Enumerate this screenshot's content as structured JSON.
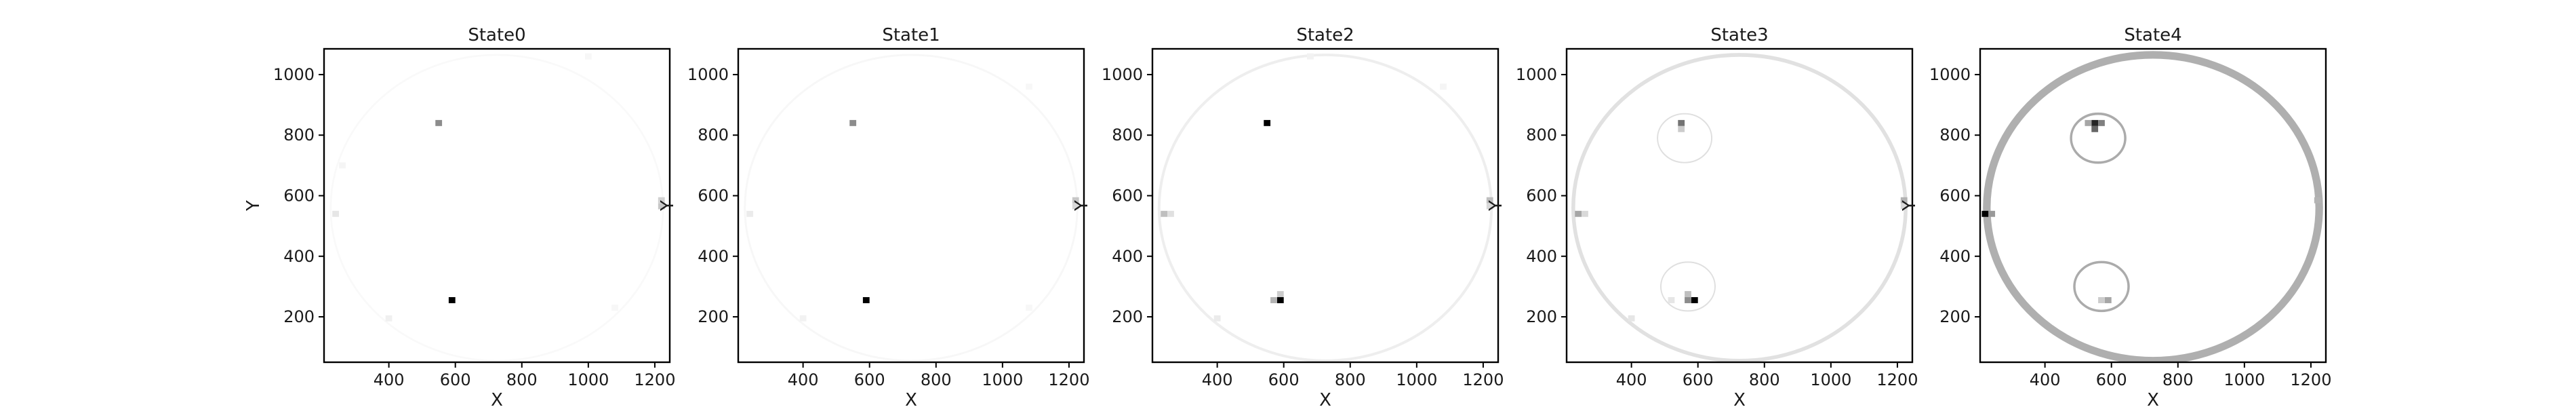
{
  "chart_data": [
    {
      "type": "heatmap",
      "title": "State0",
      "xlabel": "X",
      "ylabel": "Y",
      "xlim": [
        205,
        1245
      ],
      "ylim": [
        50,
        1085
      ],
      "xticks": [
        400,
        600,
        800,
        1000,
        1200
      ],
      "yticks": [
        200,
        400,
        600,
        800,
        1000
      ],
      "cmap": "Greys",
      "cells": [
        {
          "x": 590,
          "y": 255,
          "v": 1.0
        },
        {
          "x": 550,
          "y": 840,
          "v": 0.45
        },
        {
          "x": 1220,
          "y": 565,
          "v": 0.22
        },
        {
          "x": 1220,
          "y": 585,
          "v": 0.18
        },
        {
          "x": 240,
          "y": 540,
          "v": 0.1
        },
        {
          "x": 400,
          "y": 195,
          "v": 0.06
        },
        {
          "x": 260,
          "y": 700,
          "v": 0.04
        },
        {
          "x": 1080,
          "y": 230,
          "v": 0.03
        },
        {
          "x": 1000,
          "y": 1060,
          "v": 0.03
        }
      ]
    },
    {
      "type": "heatmap",
      "title": "State1",
      "xlabel": "X",
      "ylabel": "Y",
      "xlim": [
        205,
        1245
      ],
      "ylim": [
        50,
        1085
      ],
      "xticks": [
        400,
        600,
        800,
        1000,
        1200
      ],
      "yticks": [
        200,
        400,
        600,
        800,
        1000
      ],
      "cmap": "Greys",
      "cells": [
        {
          "x": 590,
          "y": 255,
          "v": 1.0
        },
        {
          "x": 550,
          "y": 840,
          "v": 0.45
        },
        {
          "x": 1220,
          "y": 585,
          "v": 0.22
        },
        {
          "x": 1220,
          "y": 565,
          "v": 0.15
        },
        {
          "x": 240,
          "y": 540,
          "v": 0.08
        },
        {
          "x": 400,
          "y": 195,
          "v": 0.05
        },
        {
          "x": 1080,
          "y": 230,
          "v": 0.03
        },
        {
          "x": 1080,
          "y": 960,
          "v": 0.03
        }
      ]
    },
    {
      "type": "heatmap",
      "title": "State2",
      "xlabel": "X",
      "ylabel": "Y",
      "xlim": [
        205,
        1245
      ],
      "ylim": [
        50,
        1085
      ],
      "xticks": [
        400,
        600,
        800,
        1000,
        1200
      ],
      "yticks": [
        200,
        400,
        600,
        800,
        1000
      ],
      "cmap": "Greys",
      "cells": [
        {
          "x": 550,
          "y": 840,
          "v": 1.0
        },
        {
          "x": 590,
          "y": 255,
          "v": 1.0
        },
        {
          "x": 570,
          "y": 255,
          "v": 0.3
        },
        {
          "x": 590,
          "y": 275,
          "v": 0.2
        },
        {
          "x": 1220,
          "y": 585,
          "v": 0.25
        },
        {
          "x": 1220,
          "y": 565,
          "v": 0.15
        },
        {
          "x": 240,
          "y": 540,
          "v": 0.25
        },
        {
          "x": 260,
          "y": 540,
          "v": 0.12
        },
        {
          "x": 400,
          "y": 195,
          "v": 0.08
        },
        {
          "x": 680,
          "y": 1060,
          "v": 0.05
        },
        {
          "x": 1080,
          "y": 960,
          "v": 0.04
        }
      ]
    },
    {
      "type": "heatmap",
      "title": "State3",
      "xlabel": "X",
      "ylabel": "Y",
      "xlim": [
        205,
        1245
      ],
      "ylim": [
        50,
        1085
      ],
      "xticks": [
        400,
        600,
        800,
        1000,
        1200
      ],
      "yticks": [
        200,
        400,
        600,
        800,
        1000
      ],
      "cmap": "Greys",
      "cells": [
        {
          "x": 590,
          "y": 255,
          "v": 1.0
        },
        {
          "x": 570,
          "y": 255,
          "v": 0.45
        },
        {
          "x": 570,
          "y": 275,
          "v": 0.25
        },
        {
          "x": 550,
          "y": 840,
          "v": 0.55
        },
        {
          "x": 550,
          "y": 820,
          "v": 0.2
        },
        {
          "x": 1220,
          "y": 585,
          "v": 0.3
        },
        {
          "x": 1220,
          "y": 565,
          "v": 0.15
        },
        {
          "x": 240,
          "y": 540,
          "v": 0.35
        },
        {
          "x": 260,
          "y": 540,
          "v": 0.15
        },
        {
          "x": 400,
          "y": 195,
          "v": 0.1
        },
        {
          "x": 520,
          "y": 255,
          "v": 0.1
        }
      ]
    },
    {
      "type": "heatmap",
      "title": "State4",
      "xlabel": "X",
      "ylabel": "Y",
      "xlim": [
        205,
        1245
      ],
      "ylim": [
        50,
        1085
      ],
      "xticks": [
        400,
        600,
        800,
        1000,
        1200
      ],
      "yticks": [
        200,
        400,
        600,
        800,
        1000
      ],
      "cmap": "Greys",
      "cells": [
        {
          "x": 220,
          "y": 540,
          "v": 1.0
        },
        {
          "x": 240,
          "y": 540,
          "v": 0.4
        },
        {
          "x": 550,
          "y": 840,
          "v": 0.85
        },
        {
          "x": 550,
          "y": 820,
          "v": 0.6
        },
        {
          "x": 570,
          "y": 840,
          "v": 0.5
        },
        {
          "x": 530,
          "y": 840,
          "v": 0.35
        },
        {
          "x": 590,
          "y": 255,
          "v": 0.35
        },
        {
          "x": 570,
          "y": 255,
          "v": 0.2
        },
        {
          "x": 1220,
          "y": 585,
          "v": 0.3
        }
      ]
    }
  ]
}
